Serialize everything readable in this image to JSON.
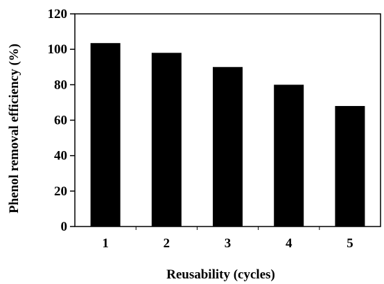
{
  "chart_data": {
    "type": "bar",
    "title": "",
    "xlabel": "Reusability (cycles)",
    "ylabel": "Phenol removal efficiency (%)",
    "categories": [
      "1",
      "2",
      "3",
      "4",
      "5"
    ],
    "values": [
      103.5,
      98,
      90,
      80,
      68
    ],
    "ylim": [
      0,
      120
    ],
    "yticks": [
      0,
      20,
      40,
      60,
      80,
      100,
      120
    ],
    "bar_color": "#000000",
    "grid": false,
    "legend": "none"
  }
}
